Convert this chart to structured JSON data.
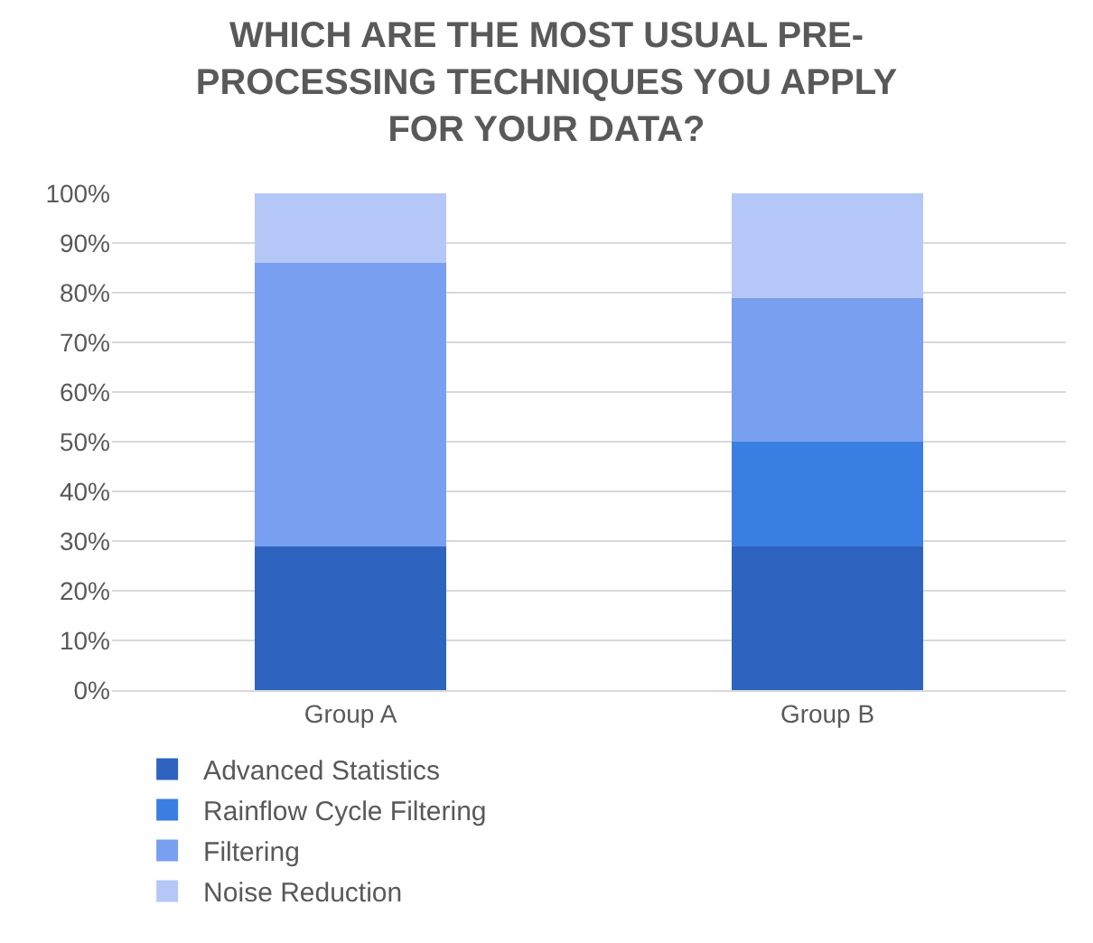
{
  "chart_data": {
    "type": "bar",
    "title": "WHICH ARE THE MOST USUAL PRE-PROCESSING TECHNIQUES YOU APPLY FOR YOUR DATA?",
    "categories": [
      "Group A",
      "Group B"
    ],
    "stacked": true,
    "series": [
      {
        "name": "Advanced Statistics",
        "color": "#2e63c0",
        "values": [
          29,
          29
        ]
      },
      {
        "name": "Rainflow Cycle Filtering",
        "color": "#3a7ee2",
        "values": [
          0,
          21
        ]
      },
      {
        "name": "Filtering",
        "color": "#789ff0",
        "values": [
          57,
          29
        ]
      },
      {
        "name": "Noise Reduction",
        "color": "#b5c7f7",
        "values": [
          14,
          21
        ]
      }
    ],
    "ylim": [
      0,
      100
    ],
    "yticks": [
      {
        "value": 0,
        "label": "0%"
      },
      {
        "value": 10,
        "label": "10%"
      },
      {
        "value": 20,
        "label": "20%"
      },
      {
        "value": 30,
        "label": "30%"
      },
      {
        "value": 40,
        "label": "40%"
      },
      {
        "value": 50,
        "label": "50%"
      },
      {
        "value": 60,
        "label": "60%"
      },
      {
        "value": 70,
        "label": "70%"
      },
      {
        "value": 80,
        "label": "80%"
      },
      {
        "value": 90,
        "label": "90%"
      },
      {
        "value": 100,
        "label": "100%"
      }
    ],
    "grid": "y",
    "legend": "bottom"
  }
}
